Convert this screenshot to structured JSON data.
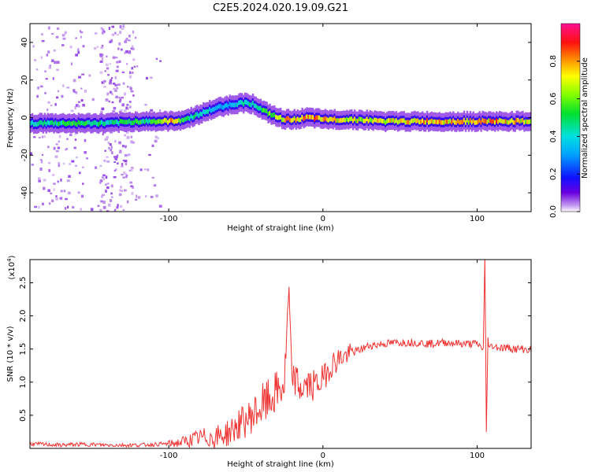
{
  "title": "C2E5.2024.020.19.09.G21",
  "colors": {
    "snr_line": "#ee3333",
    "frame": "#000000"
  },
  "chart_data": [
    {
      "type": "heatmap",
      "xlabel": "Height of straight line (km)",
      "ylabel": "Frequency (Hz)",
      "xlim": [
        -190,
        135
      ],
      "ylim": [
        -50,
        50
      ],
      "x_ticks": [
        -100,
        0,
        100
      ],
      "x_tick_labels": [
        "-100",
        "0",
        "100"
      ],
      "y_ticks": [
        -40,
        -20,
        0,
        20,
        40
      ],
      "y_tick_labels": [
        "-40",
        "-20",
        "0",
        "20",
        "40"
      ],
      "colorbar": {
        "label": "Normalized spectral amplitude",
        "range": [
          0,
          1
        ],
        "ticks": [
          0.0,
          0.2,
          0.4,
          0.6,
          0.8
        ],
        "tick_labels": [
          "0.0",
          "0.2",
          "0.4",
          "0.6",
          "0.8"
        ],
        "colormap": "rainbow: white-violet-blue-cyan-green-yellow-orange-red-magenta"
      },
      "ridge": {
        "x": [
          -190,
          -160,
          -140,
          -120,
          -110,
          -100,
          -90,
          -80,
          -70,
          -60,
          -50,
          -45,
          -40,
          -35,
          -30,
          -25,
          -20,
          -10,
          0,
          10,
          20,
          40,
          60,
          80,
          100,
          110,
          135
        ],
        "freq": [
          -3,
          -3,
          -3,
          -2,
          -2,
          -2,
          -1,
          2,
          5,
          7,
          8,
          7,
          4,
          2,
          0,
          -1,
          -1,
          0,
          -1,
          -1,
          -1,
          -2,
          -2,
          -2,
          -2,
          -2,
          -2
        ],
        "amplitude": [
          0.5,
          0.6,
          0.5,
          0.6,
          0.6,
          0.9,
          0.6,
          0.5,
          0.4,
          0.4,
          0.5,
          0.5,
          0.6,
          0.7,
          0.8,
          0.9,
          0.9,
          0.9,
          0.9,
          0.8,
          0.8,
          0.8,
          0.9,
          0.85,
          0.9,
          0.9,
          0.8
        ]
      }
    },
    {
      "type": "line",
      "xlabel": "Height of straight line (km)",
      "ylabel": "SNR (10 * v/v)",
      "y_multiplier": "(x10",
      "y_multiplier_exp": "4",
      "y_multiplier_close": ")",
      "xlim": [
        -190,
        135
      ],
      "ylim": [
        0,
        2.85
      ],
      "x_ticks": [
        -100,
        0,
        100
      ],
      "x_tick_labels": [
        "-100",
        "0",
        "100"
      ],
      "y_ticks": [
        0.5,
        1.0,
        1.5,
        2.0,
        2.5
      ],
      "y_tick_labels": [
        "0.5",
        "1.0",
        "1.5",
        "2.0",
        "2.5"
      ],
      "series": [
        {
          "x": [
            -190,
            -180,
            -170,
            -160,
            -150,
            -140,
            -130,
            -120,
            -110,
            -100,
            -95,
            -90,
            -85,
            -80,
            -75,
            -70,
            -65,
            -60,
            -55,
            -50,
            -45,
            -40,
            -35,
            -30,
            -25,
            -22,
            -20,
            -18,
            -15,
            -10,
            -5,
            0,
            5,
            10,
            15,
            20,
            25,
            30,
            40,
            50,
            60,
            70,
            80,
            90,
            100,
            104,
            105,
            106,
            107,
            108,
            110,
            115,
            120,
            125,
            130,
            135
          ],
          "y": [
            0.07,
            0.06,
            0.05,
            0.06,
            0.06,
            0.05,
            0.05,
            0.05,
            0.06,
            0.07,
            0.08,
            0.1,
            0.13,
            0.16,
            0.17,
            0.16,
            0.2,
            0.25,
            0.35,
            0.42,
            0.52,
            0.62,
            0.72,
            0.85,
            0.95,
            2.4,
            1.0,
            1.05,
            0.9,
            0.95,
            0.95,
            1.05,
            1.25,
            1.35,
            1.4,
            1.45,
            1.5,
            1.55,
            1.58,
            1.6,
            1.6,
            1.58,
            1.6,
            1.58,
            1.58,
            1.5,
            2.85,
            0.25,
            1.65,
            1.52,
            1.55,
            1.52,
            1.52,
            1.5,
            1.5,
            1.48
          ]
        }
      ]
    }
  ]
}
